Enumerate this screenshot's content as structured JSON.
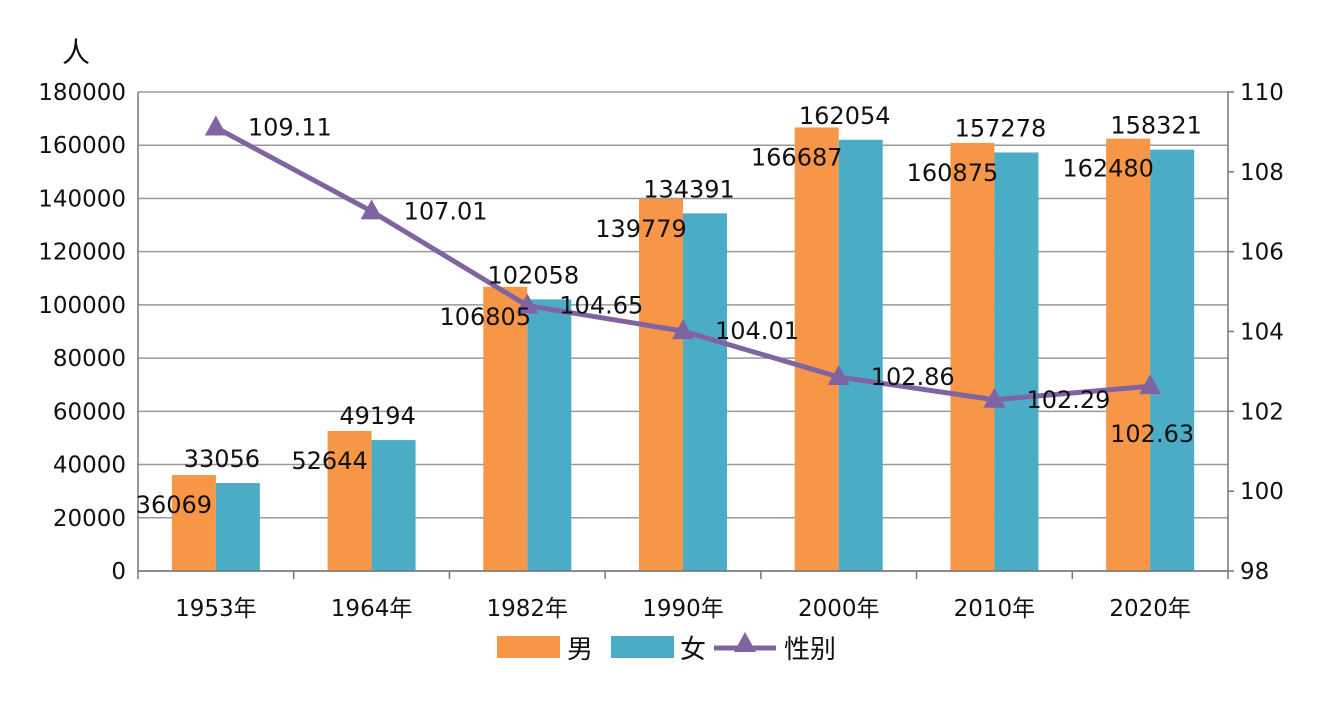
{
  "chart_data": {
    "type": "bar",
    "y_unit_label": "人",
    "categories": [
      "1953年",
      "1964年",
      "1982年",
      "1990年",
      "2000年",
      "2010年",
      "2020年"
    ],
    "series": [
      {
        "name": "男",
        "type": "bar",
        "axis": "left",
        "color": "#F79646",
        "values": [
          36069,
          52644,
          106805,
          139779,
          166687,
          160875,
          162480
        ]
      },
      {
        "name": "女",
        "type": "bar",
        "axis": "left",
        "color": "#4BACC6",
        "values": [
          33056,
          49194,
          102058,
          134391,
          162054,
          157278,
          158321
        ]
      },
      {
        "name": "性别",
        "type": "line",
        "axis": "right",
        "color": "#8064A2",
        "marker": "triangle",
        "values": [
          109.11,
          107.01,
          104.65,
          104.01,
          102.86,
          102.29,
          102.63
        ]
      }
    ],
    "data_label_text": {
      "男": [
        "36069",
        "52644",
        "106805",
        "139779",
        "166687",
        "160875",
        "162480"
      ],
      "女": [
        "33056",
        "49194",
        "102058",
        "134391",
        "162054",
        "157278",
        "158321"
      ],
      "性别": [
        "109.11",
        "107.01",
        "104.65",
        "104.01",
        "102.86",
        "102.29",
        "102.63"
      ]
    },
    "y_left": {
      "min": 0,
      "max": 180000,
      "step": 20000,
      "tick_labels": [
        "0",
        "20000",
        "40000",
        "60000",
        "80000",
        "100000",
        "120000",
        "140000",
        "160000",
        "180000"
      ]
    },
    "y_right": {
      "min": 98,
      "max": 110,
      "step": 2,
      "tick_labels": [
        "98",
        "100",
        "102",
        "104",
        "106",
        "108",
        "110"
      ]
    },
    "grid": true,
    "legend_position": "bottom-center"
  }
}
